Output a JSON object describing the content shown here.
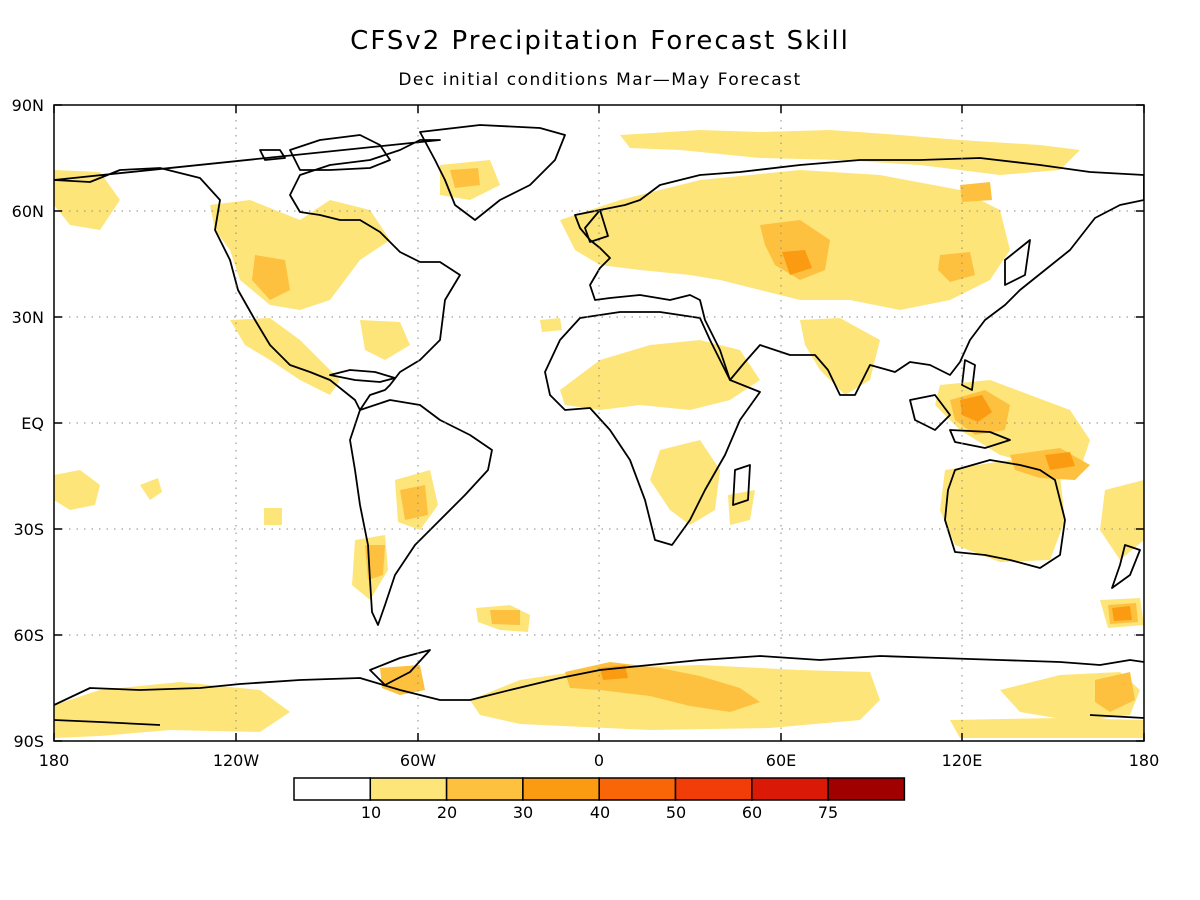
{
  "title": "CFSv2 Precipitation Forecast Skill",
  "subtitle": "Dec initial conditions  Mar—May Forecast",
  "lat_labels": [
    "90N",
    "60N",
    "30N",
    "EQ",
    "30S",
    "60S",
    "90S"
  ],
  "lon_labels": [
    "180",
    "120W",
    "60W",
    "0",
    "60E",
    "120E",
    "180"
  ],
  "colorbar": {
    "colors": [
      "#ffffff",
      "#fde57a",
      "#fdc13f",
      "#fb9b12",
      "#f86608",
      "#f23d08",
      "#da1a07",
      "#a00000"
    ],
    "labels": [
      "10",
      "20",
      "30",
      "40",
      "50",
      "60",
      "75"
    ]
  },
  "map_info": {
    "projection": "cylindrical equidistant",
    "lon_range": [
      -180,
      180
    ],
    "lat_range": [
      -90,
      90
    ],
    "gridlines": "dotted, every 60° lon and 30° lat",
    "fill_colors": {
      "10-20": "#fde57a",
      "20-30": "#fdc13f",
      "30-40": "#fb9b12"
    }
  }
}
